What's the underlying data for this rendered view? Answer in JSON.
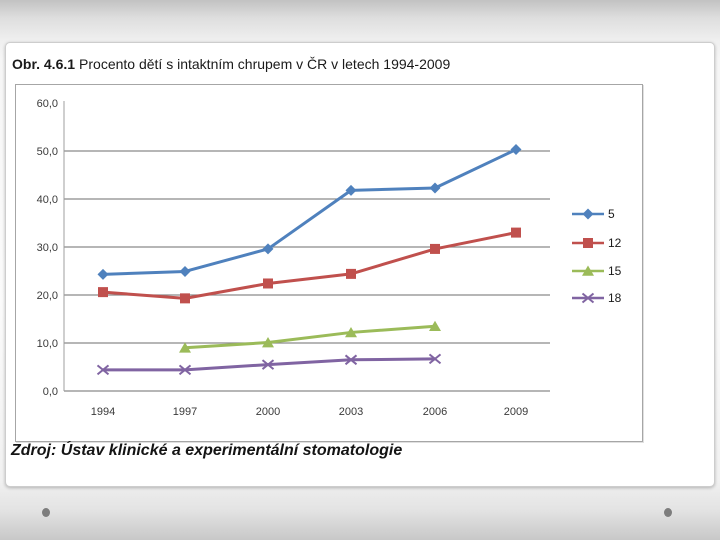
{
  "slide": {
    "title_prefix": "Obr. 4.6.1",
    "title_text": "Procento dětí s intaktním chrupem v ČR v letech 1994-2009",
    "source": "Zdroj: Ústav klinické a experimentální stomatologie"
  },
  "colors": {
    "series_5": "#4F81BD",
    "series_12": "#C0504D",
    "series_15": "#9BBB59",
    "series_18": "#8064A2",
    "gridline": "#8a8a8a",
    "axis": "#9f9f9f",
    "tick_text": "#3a3a3a",
    "legend_text": "#1a1a1a"
  },
  "chart_data": {
    "type": "line",
    "title": "",
    "xlabel": "",
    "ylabel": "",
    "categories": [
      "1994",
      "1997",
      "2000",
      "2003",
      "2006",
      "2009"
    ],
    "y_ticks": [
      "60,0",
      "50,0",
      "40,0",
      "30,0",
      "20,0",
      "10,0",
      "0,0"
    ],
    "ylim": [
      0,
      60
    ],
    "grid": true,
    "legend_position": "right",
    "series": [
      {
        "name": "5",
        "color": "#4F81BD",
        "marker": "diamond",
        "values": [
          24.3,
          24.9,
          29.6,
          41.8,
          42.3,
          50.3
        ]
      },
      {
        "name": "12",
        "color": "#C0504D",
        "marker": "square",
        "values": [
          20.6,
          19.3,
          22.4,
          24.4,
          29.6,
          33.0
        ]
      },
      {
        "name": "15",
        "color": "#9BBB59",
        "marker": "triangle",
        "values": [
          null,
          9.0,
          10.1,
          12.2,
          13.5,
          null
        ]
      },
      {
        "name": "18",
        "color": "#8064A2",
        "marker": "x",
        "values": [
          4.4,
          4.4,
          5.5,
          6.5,
          6.7,
          null
        ]
      }
    ]
  }
}
